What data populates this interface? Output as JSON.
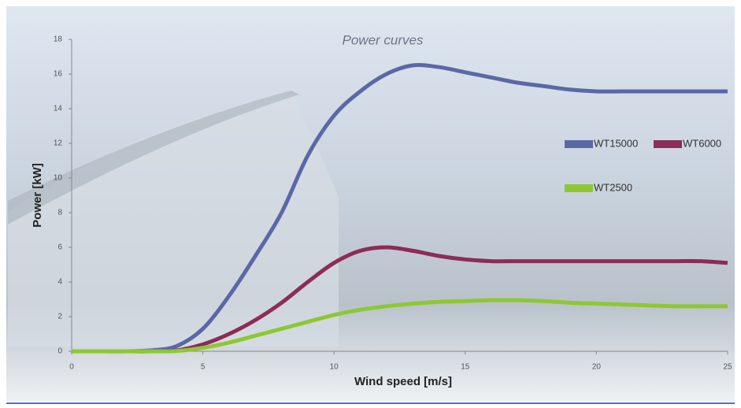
{
  "chart_data": {
    "type": "line",
    "title": "Power curves",
    "x_label": "Wind speed [m/s]",
    "y_label": "Power [kW]",
    "x": [
      0,
      1,
      2,
      3,
      4,
      5,
      6,
      7,
      8,
      9,
      10,
      11,
      12,
      13,
      14,
      15,
      16,
      17,
      18,
      19,
      20,
      21,
      22,
      23,
      24,
      25
    ],
    "series": [
      {
        "name": "WT15000",
        "color": "#5b68a6",
        "values": [
          0,
          0,
          0,
          0.05,
          0.3,
          1.3,
          3.2,
          5.5,
          8.0,
          11.3,
          13.6,
          15.0,
          16.0,
          16.5,
          16.4,
          16.1,
          15.8,
          15.5,
          15.3,
          15.1,
          15.0,
          15.0,
          15.0,
          15.0,
          15.0,
          15.0
        ]
      },
      {
        "name": "WT6000",
        "color": "#8c2c57",
        "values": [
          0,
          0,
          0,
          0,
          0.05,
          0.4,
          1.0,
          1.8,
          2.8,
          4.0,
          5.1,
          5.8,
          6.0,
          5.8,
          5.5,
          5.3,
          5.2,
          5.2,
          5.2,
          5.2,
          5.2,
          5.2,
          5.2,
          5.2,
          5.2,
          5.1
        ]
      },
      {
        "name": "WT2500",
        "color": "#8dc832",
        "values": [
          0,
          0,
          0,
          0,
          0.02,
          0.2,
          0.5,
          0.9,
          1.3,
          1.7,
          2.1,
          2.4,
          2.6,
          2.75,
          2.85,
          2.9,
          2.95,
          2.95,
          2.9,
          2.8,
          2.75,
          2.7,
          2.65,
          2.6,
          2.6,
          2.6
        ]
      }
    ],
    "xlim": [
      0,
      25
    ],
    "xticks": [
      0,
      5,
      10,
      15,
      20,
      25
    ],
    "ylim": [
      0,
      18
    ],
    "yticks": [
      0,
      2,
      4,
      6,
      8,
      10,
      12,
      14,
      16,
      18
    ],
    "grid": false
  }
}
